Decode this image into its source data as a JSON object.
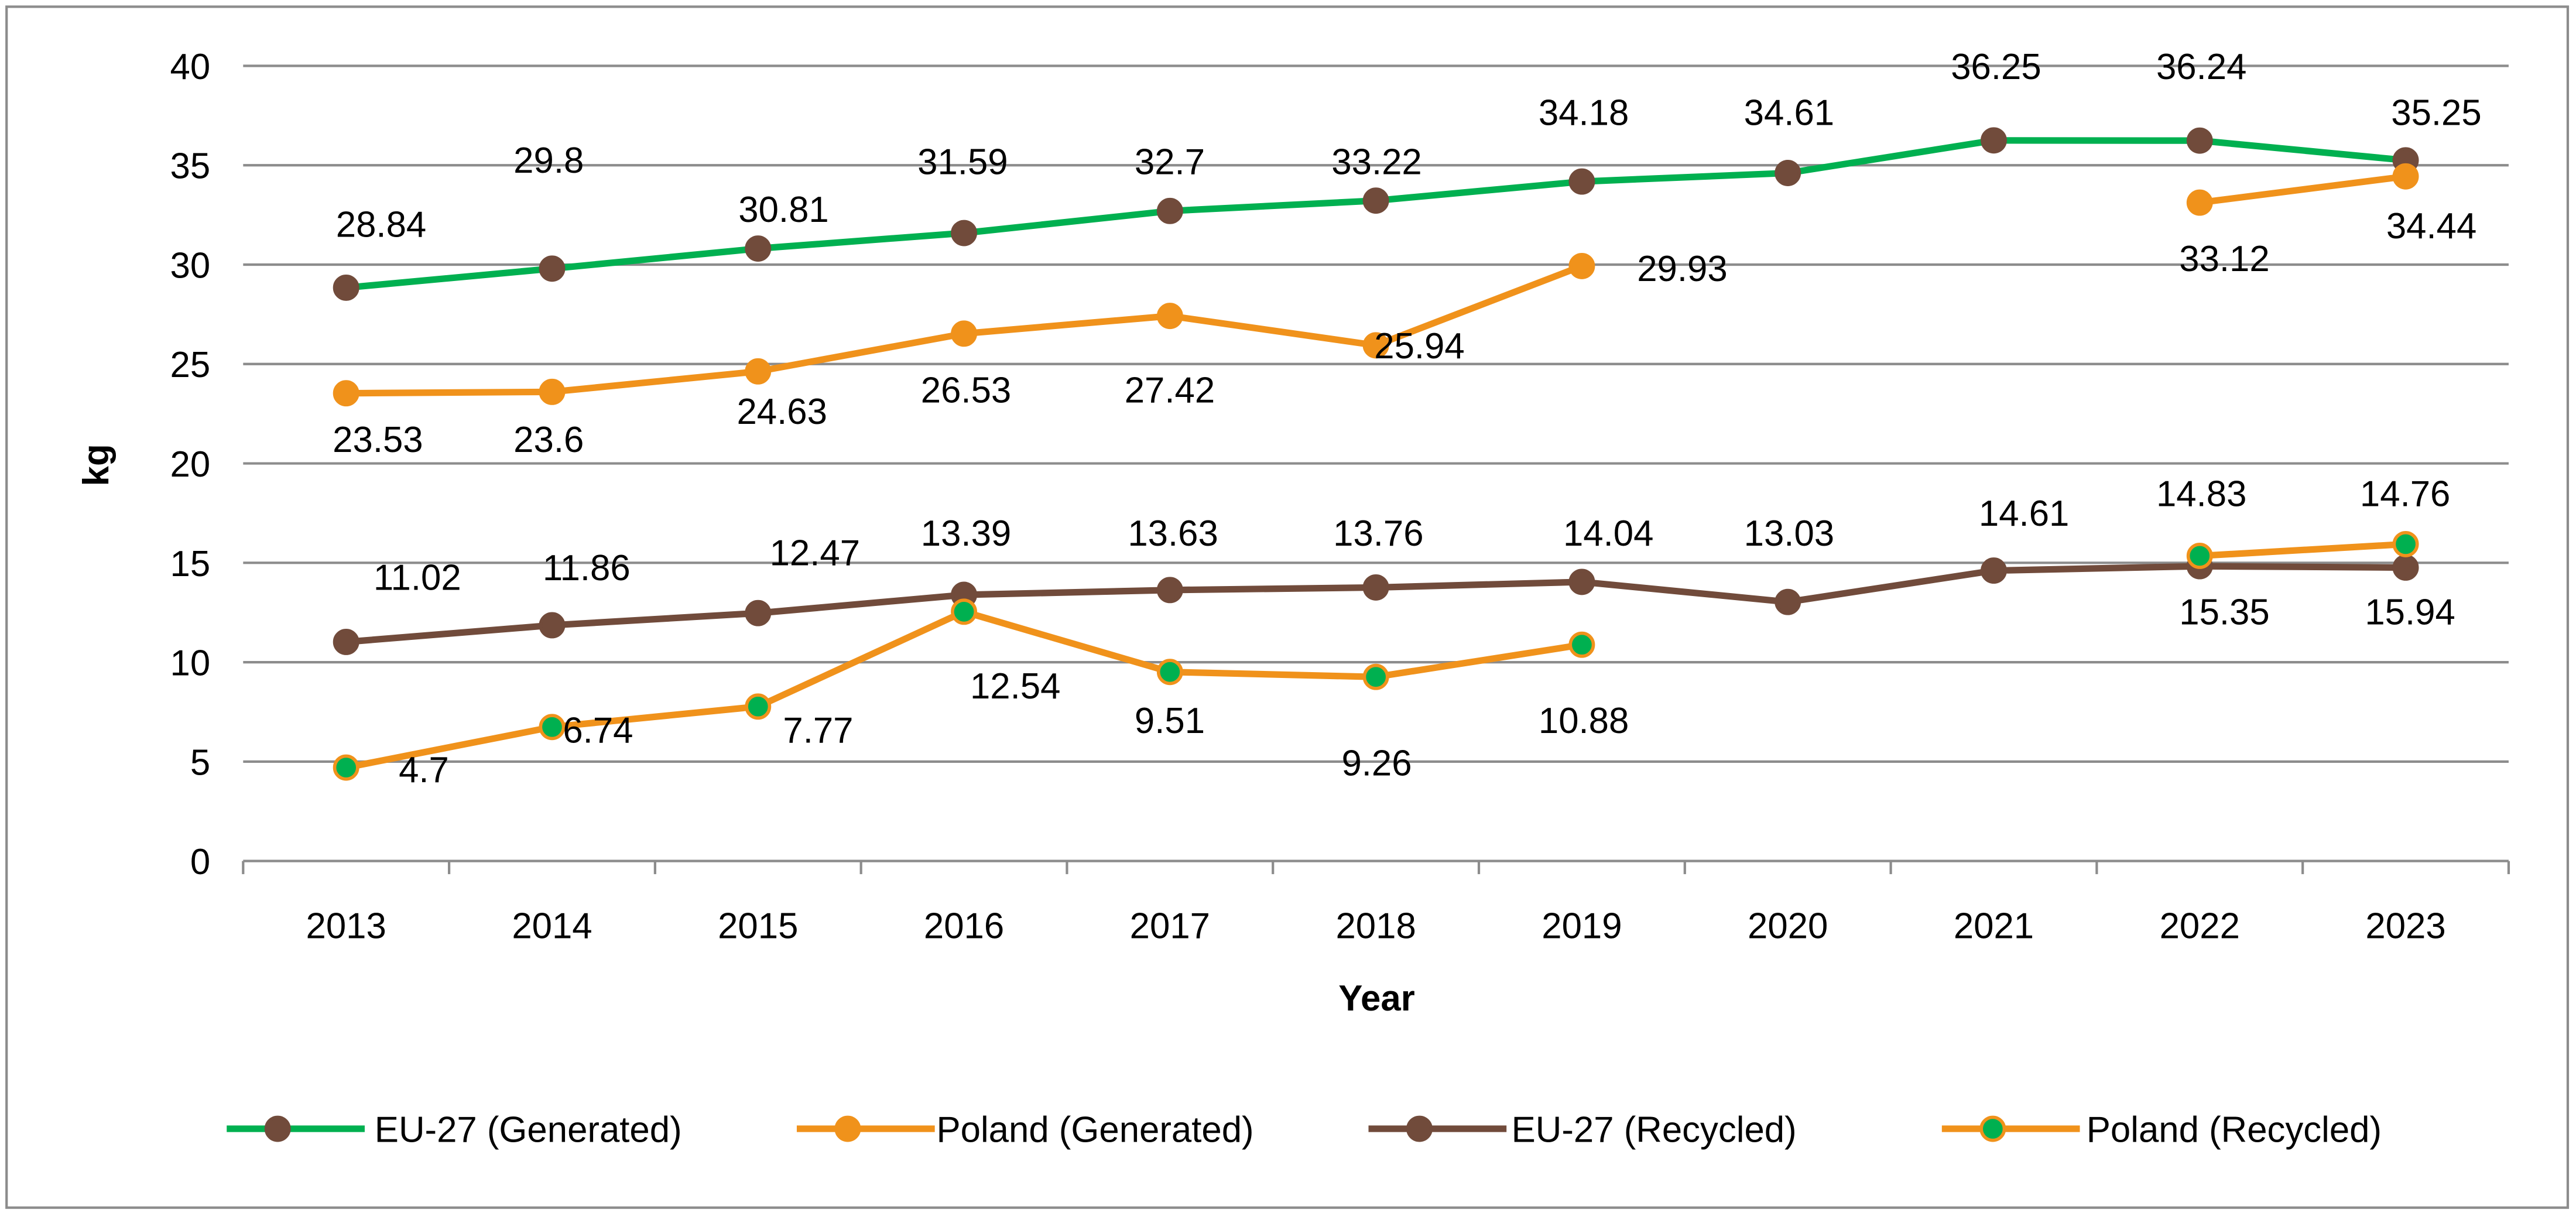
{
  "chart_data": {
    "type": "line",
    "title": "",
    "xlabel": "Year",
    "ylabel": "kg",
    "ylim": [
      0,
      40
    ],
    "yticks": [
      0,
      5,
      10,
      15,
      20,
      25,
      30,
      35,
      40
    ],
    "grid": true,
    "legend_position": "bottom",
    "categories": [
      "2013",
      "2014",
      "2015",
      "2016",
      "2017",
      "2018",
      "2019",
      "2020",
      "2021",
      "2022",
      "2023"
    ],
    "series": [
      {
        "name": "EU-27 (Generated)",
        "line_color": "#00B050",
        "marker_fill": "#714B3B",
        "marker_stroke": "#714B3B",
        "values": [
          28.84,
          29.8,
          30.81,
          31.59,
          32.7,
          33.22,
          34.18,
          34.61,
          36.25,
          36.24,
          35.25
        ]
      },
      {
        "name": "Poland (Generated)",
        "line_color": "#F0921B",
        "marker_fill": "#F0921B",
        "marker_stroke": "#F0921B",
        "values": [
          23.53,
          23.6,
          24.63,
          26.53,
          27.42,
          25.94,
          29.93,
          null,
          null,
          33.12,
          34.44
        ]
      },
      {
        "name": "EU-27 (Recycled)",
        "line_color": "#714B3B",
        "marker_fill": "#714B3B",
        "marker_stroke": "#714B3B",
        "values": [
          11.02,
          11.86,
          12.47,
          13.39,
          13.63,
          13.76,
          14.04,
          13.03,
          14.61,
          14.83,
          14.76
        ]
      },
      {
        "name": "Poland (Recycled)",
        "line_color": "#F0921B",
        "marker_fill": "#00B050",
        "marker_stroke": "#F0921B",
        "values": [
          4.7,
          6.74,
          7.77,
          12.54,
          9.51,
          9.26,
          10.88,
          null,
          null,
          15.35,
          15.94
        ]
      }
    ]
  }
}
